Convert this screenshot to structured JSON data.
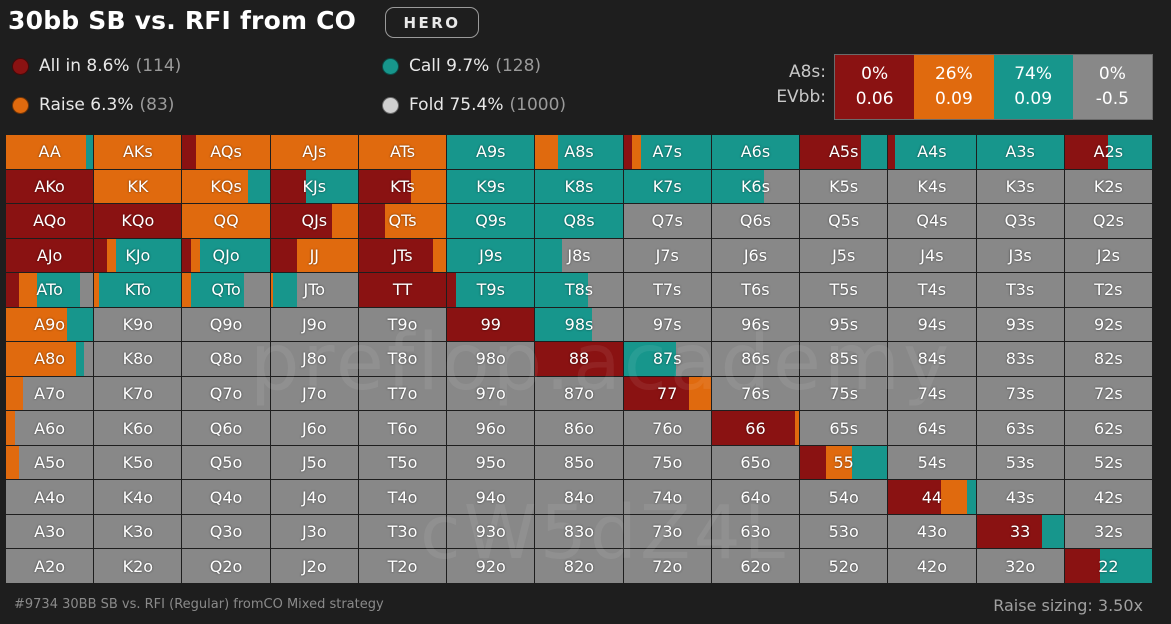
{
  "title": "30bb SB vs. RFI from CO",
  "badge": "HERO",
  "colors": {
    "allin": "#8a1212",
    "raise": "#e06a0e",
    "call": "#17968c",
    "fold": "#888888"
  },
  "legend": [
    {
      "key": "allin",
      "label": "All in 8.6%",
      "count": "(114)",
      "icon": "all-in-dot-icon"
    },
    {
      "key": "call",
      "label": "Call 9.7%",
      "count": "(128)",
      "icon": "call-dot-icon"
    },
    {
      "key": "raise",
      "label": "Raise 6.3%",
      "count": "(83)",
      "icon": "raise-dot-icon"
    },
    {
      "key": "fold",
      "label": "Fold 75.4%",
      "count": "(1000)",
      "icon": "fold-dot-icon"
    }
  ],
  "combo": {
    "hand_label": "A8s:",
    "ev_label": "EVbb:",
    "columns": [
      {
        "key": "allin",
        "pct": "0%",
        "ev": "0.06"
      },
      {
        "key": "raise",
        "pct": "26%",
        "ev": "0.09"
      },
      {
        "key": "call",
        "pct": "74%",
        "ev": "0.09"
      },
      {
        "key": "fold",
        "pct": "0%",
        "ev": "-0.5"
      }
    ]
  },
  "ranks": [
    "A",
    "K",
    "Q",
    "J",
    "T",
    "9",
    "8",
    "7",
    "6",
    "5",
    "4",
    "3",
    "2"
  ],
  "strategy": {
    "AA": [
      0,
      92,
      8
    ],
    "AKs": [
      0,
      100,
      0
    ],
    "AQs": [
      15,
      85,
      0
    ],
    "AJs": [
      0,
      100,
      0
    ],
    "ATs": [
      0,
      100,
      0
    ],
    "A9s": [
      0,
      0,
      100
    ],
    "A8s": [
      0,
      26,
      74
    ],
    "A7s": [
      10,
      10,
      80
    ],
    "A6s": [
      0,
      0,
      100
    ],
    "A5s": [
      70,
      0,
      30
    ],
    "A4s": [
      8,
      0,
      92
    ],
    "A3s": [
      0,
      0,
      100
    ],
    "A2s": [
      50,
      0,
      50
    ],
    "AKo": [
      100,
      0,
      0
    ],
    "KK": [
      0,
      100,
      0
    ],
    "KQs": [
      0,
      75,
      25
    ],
    "KJs": [
      40,
      0,
      60
    ],
    "KTs": [
      60,
      40,
      0
    ],
    "K9s": [
      0,
      0,
      100
    ],
    "K8s": [
      0,
      0,
      100
    ],
    "K7s": [
      0,
      0,
      100
    ],
    "K6s": [
      0,
      0,
      60
    ],
    "AQo": [
      100,
      0,
      0
    ],
    "KQo": [
      100,
      0,
      0
    ],
    "QQ": [
      0,
      100,
      0
    ],
    "QJs": [
      70,
      30,
      0
    ],
    "QTs": [
      30,
      70,
      0
    ],
    "Q9s": [
      0,
      0,
      100
    ],
    "Q8s": [
      0,
      0,
      100
    ],
    "AJo": [
      100,
      0,
      0
    ],
    "KJo": [
      15,
      10,
      75
    ],
    "QJo": [
      10,
      10,
      80
    ],
    "JJ": [
      30,
      70,
      0
    ],
    "JTs": [
      85,
      15,
      0
    ],
    "J9s": [
      0,
      0,
      100
    ],
    "J8s": [
      0,
      0,
      30
    ],
    "ATo": [
      15,
      20,
      50
    ],
    "KTo": [
      0,
      5,
      95
    ],
    "QTo": [
      0,
      10,
      60
    ],
    "JTo": [
      0,
      3,
      27
    ],
    "TT": [
      100,
      0,
      0
    ],
    "T9s": [
      10,
      0,
      90
    ],
    "T8s": [
      0,
      0,
      60
    ],
    "A9o": [
      0,
      70,
      30
    ],
    "99": [
      100,
      0,
      0
    ],
    "98s": [
      0,
      0,
      65
    ],
    "A8o": [
      0,
      80,
      10
    ],
    "88": [
      100,
      0,
      0
    ],
    "87s": [
      0,
      0,
      60
    ],
    "A7o": [
      0,
      20,
      0
    ],
    "77": [
      75,
      25,
      0
    ],
    "A6o": [
      0,
      10,
      0
    ],
    "66": [
      95,
      5,
      0
    ],
    "A5o": [
      0,
      15,
      0
    ],
    "55": [
      30,
      30,
      40
    ],
    "44": [
      60,
      30,
      10
    ],
    "33": [
      75,
      0,
      25
    ],
    "22": [
      40,
      0,
      60
    ]
  },
  "watermark": {
    "line1": "preflop.academy",
    "line2": "cW5dZ4L"
  },
  "footer": {
    "left": "#9734 30BB SB vs. RFI (Regular) fromCO Mixed strategy",
    "right": "Raise sizing: 3.50x"
  }
}
